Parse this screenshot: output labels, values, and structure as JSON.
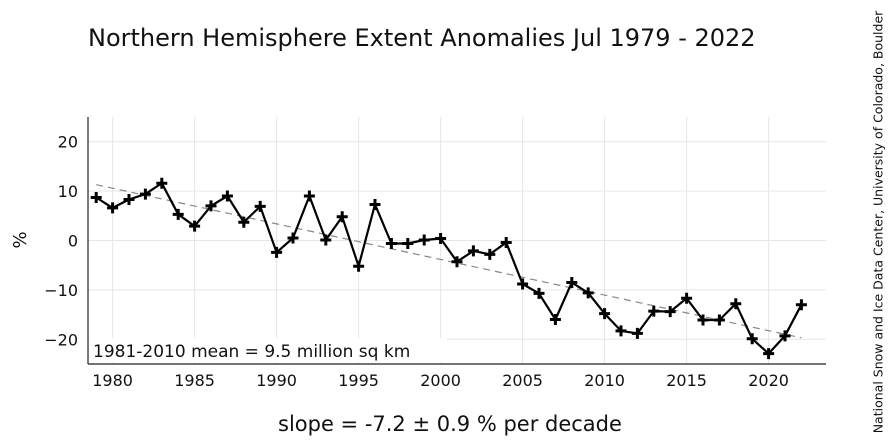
{
  "chart_data": {
    "type": "line",
    "title": "Northern Hemisphere Extent Anomalies Jul 1979 - 2022",
    "xlabel": "slope = -7.2 ± 0.9 % per decade",
    "ylabel": "%",
    "credit": "National Snow and Ice Data Center, University of Colorado, Boulder",
    "annotation": "1981-2010 mean = 9.5 million sq km",
    "xlim": [
      1978.5,
      2023.5
    ],
    "ylim": [
      -25,
      25
    ],
    "xticks": [
      1980,
      1985,
      1990,
      1995,
      2000,
      2005,
      2010,
      2015,
      2020
    ],
    "yticks": [
      20,
      10,
      0,
      -10,
      -20
    ],
    "ytick_labels": [
      "20",
      "10",
      "0",
      "−10",
      "−20"
    ],
    "grid": true,
    "series": [
      {
        "name": "July extent anomaly",
        "marker": "plus",
        "color": "#000000",
        "x": [
          1979,
          1980,
          1981,
          1982,
          1983,
          1984,
          1985,
          1986,
          1987,
          1988,
          1989,
          1990,
          1991,
          1992,
          1993,
          1994,
          1995,
          1996,
          1997,
          1998,
          1999,
          2000,
          2001,
          2002,
          2003,
          2004,
          2005,
          2006,
          2007,
          2008,
          2009,
          2010,
          2011,
          2012,
          2013,
          2014,
          2015,
          2016,
          2017,
          2018,
          2019,
          2020,
          2021,
          2022
        ],
        "values": [
          8.7,
          6.6,
          8.3,
          9.4,
          11.6,
          5.3,
          2.9,
          7.0,
          9.0,
          3.7,
          6.9,
          -2.4,
          0.5,
          9.0,
          0.1,
          4.8,
          -5.2,
          7.3,
          -0.6,
          -0.6,
          0.1,
          0.4,
          -4.3,
          -2.1,
          -2.8,
          -0.4,
          -8.8,
          -10.7,
          -16.0,
          -8.5,
          -10.6,
          -14.8,
          -18.3,
          -18.8,
          -14.3,
          -14.4,
          -11.7,
          -16.1,
          -16.1,
          -12.8,
          -19.9,
          -22.9,
          -19.3,
          -13.0
        ]
      }
    ],
    "trend": {
      "name": "linear trend",
      "style": "dashed",
      "color": "#888888",
      "x": [
        1979,
        2022
      ],
      "values": [
        11.3,
        -19.7
      ]
    }
  }
}
